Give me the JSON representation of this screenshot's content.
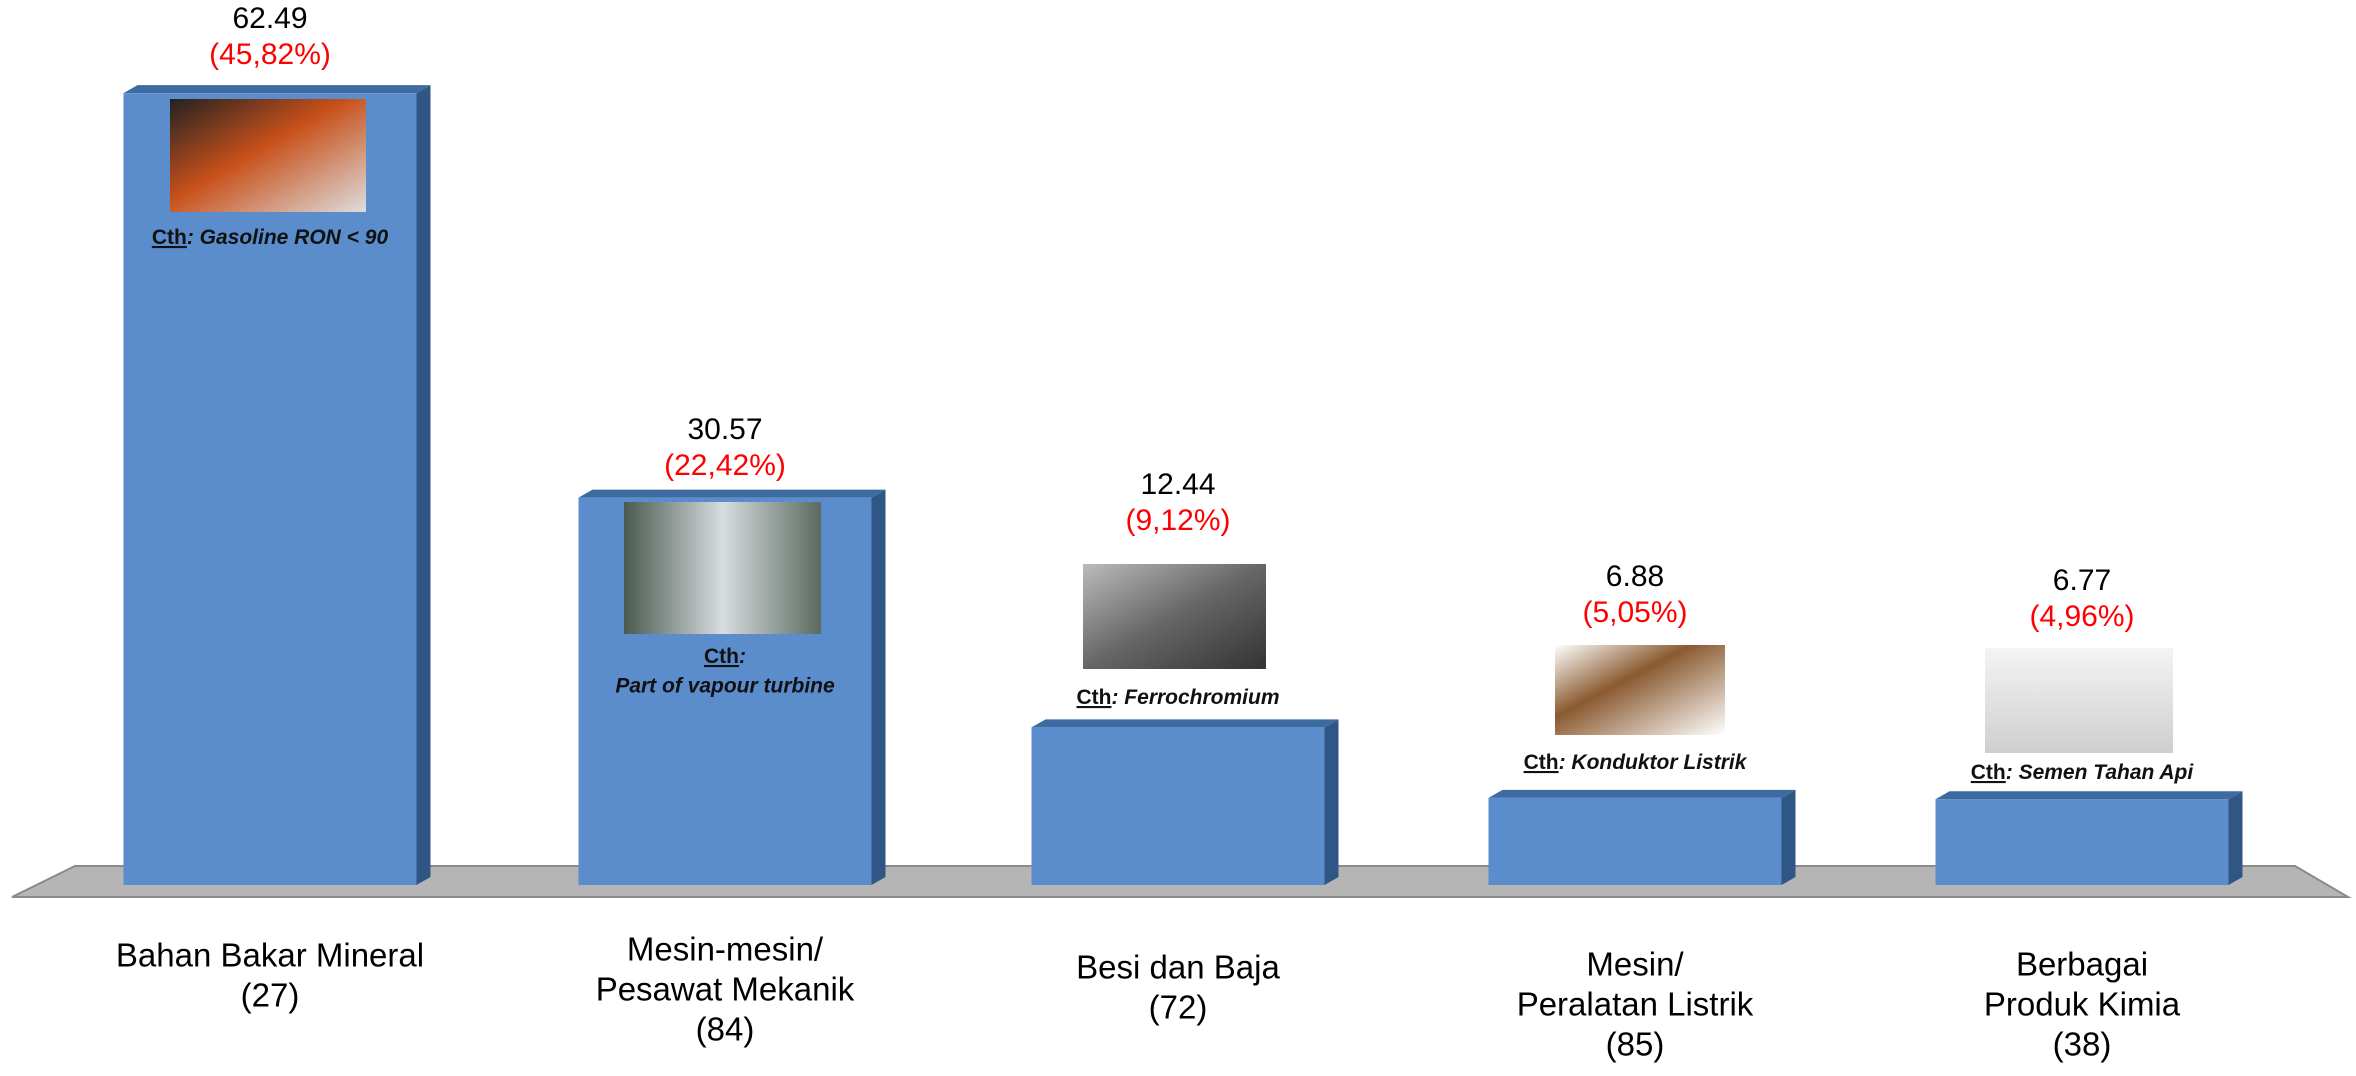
{
  "chart_data": {
    "type": "bar",
    "categories": [
      [
        "Bahan Bakar Mineral",
        "(27)"
      ],
      [
        "Mesin-mesin/",
        "Pesawat Mekanik",
        "(84)"
      ],
      [
        "Besi dan Baja",
        "(72)"
      ],
      [
        "Mesin/",
        "Peralatan Listrik",
        "(85)"
      ],
      [
        "Berbagai",
        "Produk Kimia",
        "(38)"
      ]
    ],
    "values": [
      62.49,
      30.57,
      12.44,
      6.88,
      6.77
    ],
    "shares": [
      "(45,82%)",
      "(22,42%)",
      "(9,12%)",
      "(5,05%)",
      "(4,96%)"
    ],
    "annotations": [
      {
        "lead": "Cth",
        "rest": ": Gasoline RON < 90"
      },
      {
        "lead": "Cth",
        "rest": ":",
        "line2": "Part of vapour turbine"
      },
      {
        "lead": "Cth",
        "rest": ":  Ferrochromium"
      },
      {
        "lead": "Cth",
        "rest": ": Konduktor Listrik"
      },
      {
        "lead": "Cth",
        "rest": ":  Semen Tahan Api"
      }
    ],
    "color": "#5b8ccc",
    "ylim": [
      0,
      70
    ]
  }
}
